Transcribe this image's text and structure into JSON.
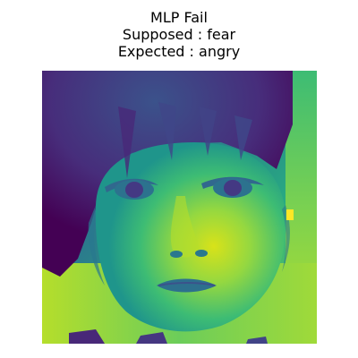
{
  "figure": {
    "title_lines": [
      "MLP Fail",
      "Supposed : fear",
      "Expected : angry"
    ],
    "colormap": "viridis",
    "image_subject": "face",
    "colors": {
      "viridis_dark": "#440154",
      "viridis_mid": "#21918c",
      "viridis_bright": "#fde725"
    }
  }
}
